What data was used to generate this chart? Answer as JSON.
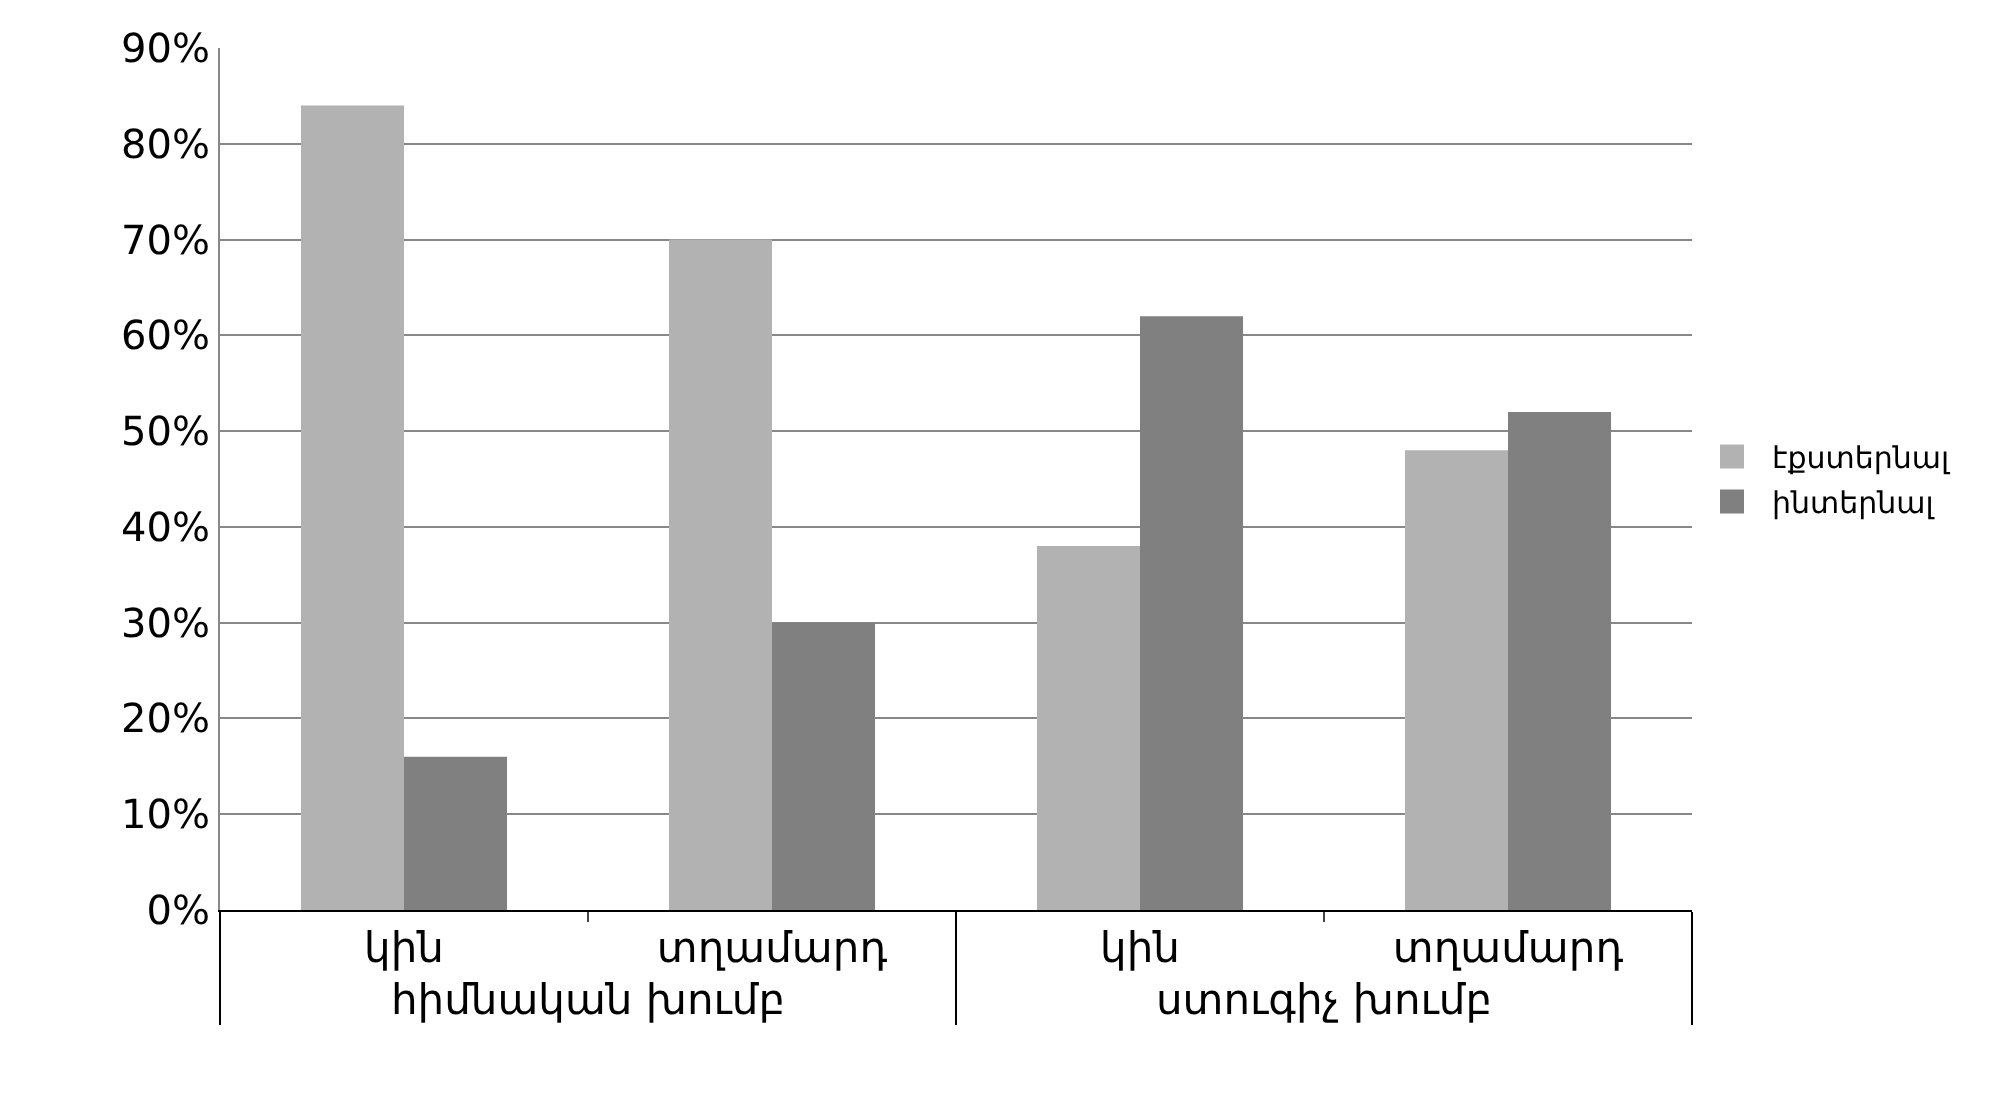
{
  "chart_data": {
    "type": "bar",
    "categories": [
      "կին",
      "տղամարդ",
      "կին",
      "տղամարդ"
    ],
    "annotations": [
      "հիմնական խումբ",
      "ստուգիչ խումբ"
    ],
    "series": [
      {
        "name": "էքստերնալ",
        "color": "#b2b2b2",
        "values": [
          84,
          70,
          38,
          48
        ]
      },
      {
        "name": "ինտերնալ",
        "color": "#808080",
        "values": [
          16,
          30,
          62,
          52
        ]
      }
    ],
    "ylim": [
      0,
      90
    ],
    "yticks": [
      {
        "value": 0,
        "label": "0%"
      },
      {
        "value": 10,
        "label": "10%"
      },
      {
        "value": 20,
        "label": "20%"
      },
      {
        "value": 30,
        "label": "30%"
      },
      {
        "value": 40,
        "label": "40%"
      },
      {
        "value": 50,
        "label": "50%"
      },
      {
        "value": 60,
        "label": "60%"
      },
      {
        "value": 70,
        "label": "70%"
      },
      {
        "value": 80,
        "label": "80%"
      },
      {
        "value": 90,
        "label": "90%"
      }
    ],
    "grid": "y",
    "legend": "right"
  }
}
